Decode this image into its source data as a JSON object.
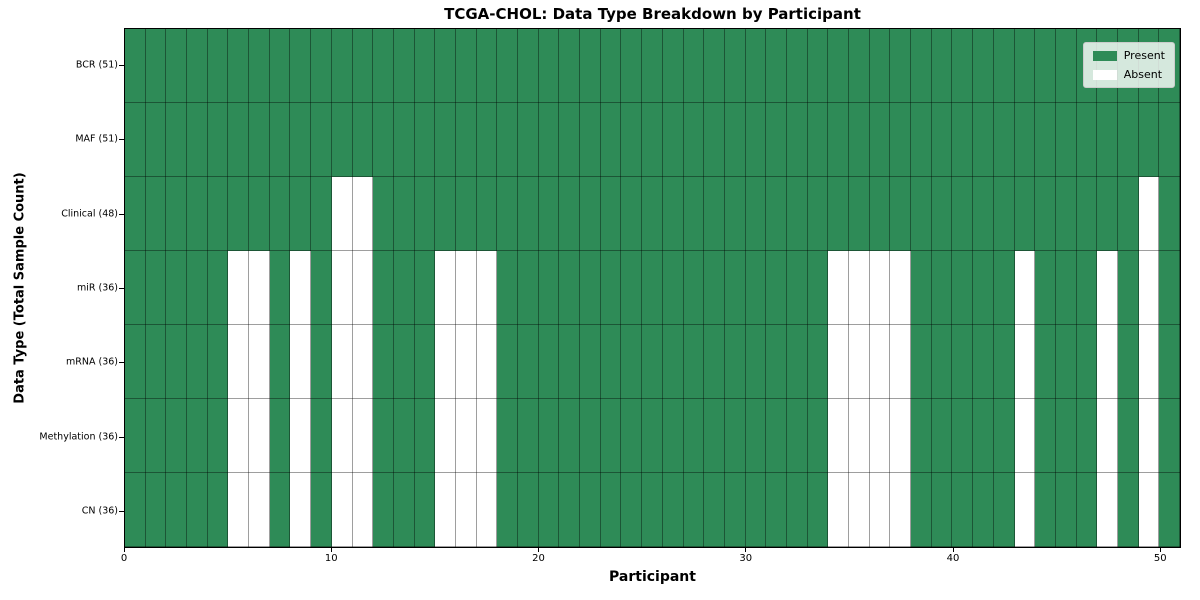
{
  "chart_data": {
    "type": "heatmap",
    "title": "TCGA-CHOL: Data Type Breakdown by Participant",
    "xlabel": "Participant",
    "ylabel": "Data Type (Total Sample Count)",
    "x_ticks": [
      0,
      10,
      20,
      30,
      40,
      50
    ],
    "x_range": [
      0,
      51
    ],
    "n_participants": 51,
    "grid": true,
    "legend_position": "upper right",
    "legend": [
      {
        "label": "Present",
        "color": "#2e8b57"
      },
      {
        "label": "Absent",
        "color": "#ffffff"
      }
    ],
    "colors": {
      "present": "#2e8b57",
      "absent": "#ffffff",
      "gridline": "rgba(0,0,0,0.38)"
    },
    "rows": [
      {
        "label": "BCR (51)",
        "total": 51,
        "absent_participants": []
      },
      {
        "label": "MAF (51)",
        "total": 51,
        "absent_participants": []
      },
      {
        "label": "Clinical (48)",
        "total": 48,
        "absent_participants": [
          10,
          11,
          49
        ]
      },
      {
        "label": "miR (36)",
        "total": 36,
        "absent_participants": [
          5,
          6,
          8,
          10,
          11,
          15,
          16,
          17,
          34,
          35,
          36,
          37,
          43,
          47,
          49
        ]
      },
      {
        "label": "mRNA (36)",
        "total": 36,
        "absent_participants": [
          5,
          6,
          8,
          10,
          11,
          15,
          16,
          17,
          34,
          35,
          36,
          37,
          43,
          47,
          49
        ]
      },
      {
        "label": "Methylation (36)",
        "total": 36,
        "absent_participants": [
          5,
          6,
          8,
          10,
          11,
          15,
          16,
          17,
          34,
          35,
          36,
          37,
          43,
          47,
          49
        ]
      },
      {
        "label": "CN (36)",
        "total": 36,
        "absent_participants": [
          5,
          6,
          8,
          10,
          11,
          15,
          16,
          17,
          34,
          35,
          36,
          37,
          43,
          47,
          49
        ]
      }
    ]
  }
}
